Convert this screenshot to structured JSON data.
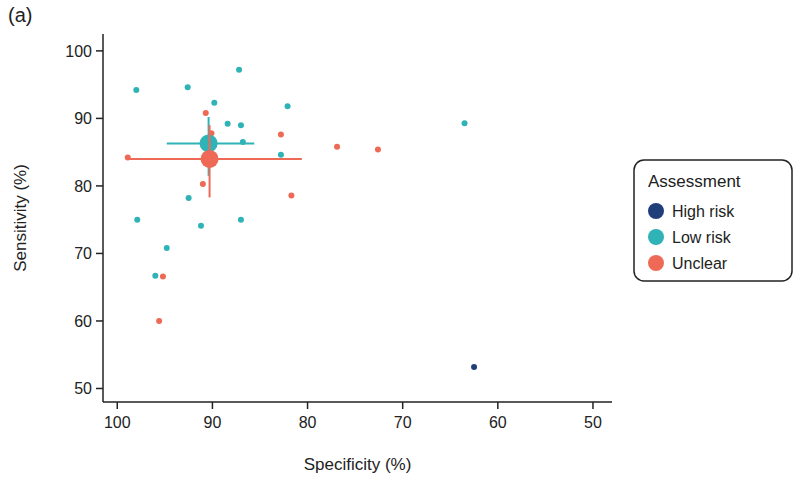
{
  "chart_data": {
    "type": "scatter",
    "title": "(a)",
    "x_label": "Specificity (%)",
    "y_label": "Sensitivity (%)",
    "legend_title": "Assessment",
    "legend": "right",
    "xlim": [
      101.5,
      48
    ],
    "ylim": [
      48,
      102.5
    ],
    "xticks": [
      100,
      90,
      80,
      70,
      60,
      50
    ],
    "yticks": [
      50,
      60,
      70,
      80,
      90,
      100
    ],
    "grid": false,
    "series": [
      {
        "name": "High risk",
        "color": "#1f3f7a",
        "marker": "circle",
        "x": [
          62.5
        ],
        "values": [
          53.2
        ]
      },
      {
        "name": "Low risk",
        "color": "#30b3b6",
        "marker": "circle",
        "x": [
          98.0,
          92.6,
          87.2,
          89.8,
          88.4,
          87.0,
          86.8,
          82.1,
          82.8,
          63.5,
          92.5,
          87.0,
          91.2,
          97.9,
          94.8,
          96.0
        ],
        "values": [
          94.2,
          94.6,
          97.2,
          92.3,
          89.2,
          89.0,
          86.5,
          91.8,
          84.6,
          89.3,
          78.2,
          75.0,
          74.1,
          75.0,
          70.8,
          66.7
        ],
        "summary": {
          "x": 90.4,
          "y": 86.3,
          "x_low": 85.6,
          "x_high": 94.8,
          "y_low": 81.5,
          "y_high": 90.2
        }
      },
      {
        "name": "Unclear",
        "color": "#ee6a56",
        "marker": "circle",
        "x": [
          98.9,
          90.7,
          82.8,
          76.9,
          72.6,
          81.7,
          91.0,
          95.2,
          95.6,
          90.1
        ],
        "values": [
          84.2,
          90.8,
          87.6,
          85.8,
          85.4,
          78.6,
          80.3,
          66.6,
          60.0,
          87.8
        ],
        "summary": {
          "x": 90.3,
          "y": 84.0,
          "x_low": 80.6,
          "x_high": 99.0,
          "y_low": 78.3,
          "y_high": 89.0
        }
      }
    ]
  }
}
